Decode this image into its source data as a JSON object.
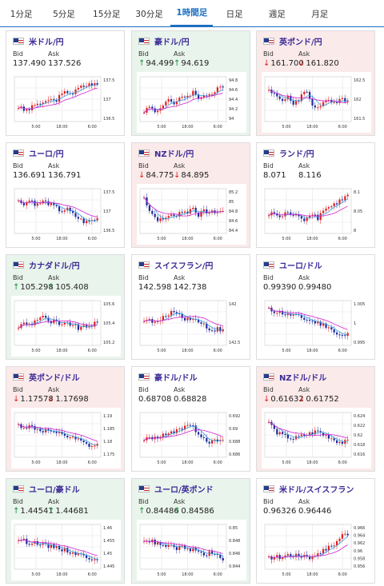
{
  "tabs": [
    {
      "label": "1分足",
      "active": false
    },
    {
      "label": "5分足",
      "active": false
    },
    {
      "label": "15分足",
      "active": false
    },
    {
      "label": "30分足",
      "active": false
    },
    {
      "label": "1時間足",
      "active": true
    },
    {
      "label": "日足",
      "active": false
    },
    {
      "label": "週足",
      "active": false
    },
    {
      "label": "月足",
      "active": false
    }
  ],
  "labels": {
    "bid": "Bid",
    "ask": "Ask"
  },
  "colors": {
    "up": "#1a8a3a",
    "down": "#d22222",
    "pair": "#3b2b96",
    "tab_active": "#1b6fc0",
    "candle_up": "#e02020",
    "candle_down": "#1e2a9a",
    "ma_short": "#3aa0e0",
    "ma_long": "#d020d0"
  },
  "x_ticks": [
    "5:00",
    "18:00",
    "6:00"
  ],
  "cards": [
    {
      "pair": "米ドル/円",
      "trend": "neutral",
      "bid": "137.490",
      "ask": "137.526",
      "y_ticks": [
        "137.5",
        "137",
        "136.5"
      ],
      "shape": [
        0.3,
        0.2,
        0.25,
        0.4,
        0.35,
        0.5,
        0.45,
        0.6,
        0.7,
        0.65,
        0.8,
        0.85,
        0.9,
        0.88
      ]
    },
    {
      "pair": "豪ドル/円",
      "trend": "up",
      "bid": "94.499",
      "ask": "94.619",
      "y_ticks": [
        "94.8",
        "94.6",
        "94.4",
        "94.2",
        "94"
      ],
      "shape": [
        0.2,
        0.3,
        0.15,
        0.35,
        0.5,
        0.3,
        0.6,
        0.55,
        0.7,
        0.5,
        0.65,
        0.6,
        0.75,
        0.8
      ]
    },
    {
      "pair": "英ポンド/円",
      "trend": "down",
      "bid": "161.700",
      "ask": "161.820",
      "y_ticks": [
        "162.5",
        "162",
        "161.5"
      ],
      "shape": [
        0.7,
        0.6,
        0.5,
        0.55,
        0.4,
        0.45,
        0.8,
        0.35,
        0.3,
        0.4,
        0.45,
        0.35,
        0.5,
        0.45
      ]
    },
    {
      "pair": "ユーロ/円",
      "trend": "neutral",
      "bid": "136.691",
      "ask": "136.791",
      "y_ticks": [
        "137.5",
        "137",
        "136.5"
      ],
      "shape": [
        0.75,
        0.7,
        0.8,
        0.65,
        0.75,
        0.7,
        0.6,
        0.5,
        0.55,
        0.4,
        0.3,
        0.2,
        0.25,
        0.3
      ]
    },
    {
      "pair": "NZドル/円",
      "trend": "down",
      "bid": "84.775",
      "ask": "84.895",
      "y_ticks": [
        "85.2",
        "85",
        "84.8",
        "84.6",
        "84.4"
      ],
      "shape": [
        0.85,
        0.5,
        0.3,
        0.25,
        0.4,
        0.35,
        0.5,
        0.45,
        0.6,
        0.4,
        0.5,
        0.45,
        0.5,
        0.48
      ]
    },
    {
      "pair": "ランド/円",
      "trend": "neutral",
      "bid": "8.071",
      "ask": "8.116",
      "y_ticks": [
        "8.1",
        "8.05",
        "8"
      ],
      "shape": [
        0.4,
        0.45,
        0.3,
        0.5,
        0.35,
        0.4,
        0.25,
        0.5,
        0.3,
        0.55,
        0.6,
        0.7,
        0.8,
        0.9
      ]
    },
    {
      "pair": "カナダドル/円",
      "trend": "up",
      "bid": "105.298",
      "ask": "105.408",
      "y_ticks": [
        "105.6",
        "105.4",
        "105.2"
      ],
      "shape": [
        0.4,
        0.5,
        0.45,
        0.6,
        0.7,
        0.5,
        0.55,
        0.4,
        0.5,
        0.45,
        0.35,
        0.4,
        0.45,
        0.5
      ]
    },
    {
      "pair": "スイスフラン/円",
      "trend": "neutral",
      "bid": "142.598",
      "ask": "142.738",
      "y_ticks": [
        "142",
        "142.5"
      ],
      "shape": [
        0.6,
        0.55,
        0.5,
        0.6,
        0.75,
        0.8,
        0.7,
        0.6,
        0.65,
        0.5,
        0.45,
        0.3,
        0.35,
        0.3
      ]
    },
    {
      "pair": "ユーロ/ドル",
      "trend": "neutral",
      "bid": "0.99390",
      "ask": "0.99480",
      "y_ticks": [
        "1.005",
        "1",
        "0.995"
      ],
      "shape": [
        0.85,
        0.8,
        0.78,
        0.7,
        0.72,
        0.65,
        0.6,
        0.55,
        0.5,
        0.45,
        0.4,
        0.2,
        0.15,
        0.2
      ]
    },
    {
      "pair": "英ポンド/ドル",
      "trend": "down",
      "bid": "1.17578",
      "ask": "1.17698",
      "y_ticks": [
        "1.19",
        "1.185",
        "1.18",
        "1.175"
      ],
      "shape": [
        0.75,
        0.7,
        0.72,
        0.65,
        0.6,
        0.62,
        0.5,
        0.55,
        0.45,
        0.4,
        0.35,
        0.25,
        0.2,
        0.22
      ]
    },
    {
      "pair": "豪ドル/ドル",
      "trend": "neutral",
      "bid": "0.68708",
      "ask": "0.68828",
      "y_ticks": [
        "0.692",
        "0.69",
        "0.688",
        "0.686"
      ],
      "shape": [
        0.35,
        0.45,
        0.4,
        0.55,
        0.5,
        0.6,
        0.65,
        0.8,
        0.7,
        0.55,
        0.4,
        0.3,
        0.35,
        0.32
      ]
    },
    {
      "pair": "NZドル/ドル",
      "trend": "down",
      "bid": "0.61632",
      "ask": "0.61752",
      "y_ticks": [
        "0.624",
        "0.622",
        "0.62",
        "0.618",
        "0.616"
      ],
      "shape": [
        0.85,
        0.6,
        0.5,
        0.45,
        0.4,
        0.45,
        0.5,
        0.55,
        0.6,
        0.5,
        0.45,
        0.35,
        0.3,
        0.32
      ]
    },
    {
      "pair": "ユーロ/豪ドル",
      "trend": "up",
      "bid": "1.44541",
      "ask": "1.44681",
      "y_ticks": [
        "1.46",
        "1.455",
        "1.45",
        "1.445"
      ],
      "shape": [
        0.7,
        0.65,
        0.6,
        0.62,
        0.55,
        0.5,
        0.52,
        0.45,
        0.4,
        0.35,
        0.3,
        0.25,
        0.2,
        0.22
      ]
    },
    {
      "pair": "ユーロ/英ポンド",
      "trend": "up",
      "bid": "0.84486",
      "ask": "0.84586",
      "y_ticks": [
        "0.85",
        "0.848",
        "0.846",
        "0.844"
      ],
      "shape": [
        0.7,
        0.65,
        0.6,
        0.5,
        0.55,
        0.45,
        0.5,
        0.4,
        0.45,
        0.35,
        0.3,
        0.35,
        0.25,
        0.2
      ]
    },
    {
      "pair": "米ドル/スイスフラン",
      "trend": "neutral",
      "bid": "0.96326",
      "ask": "0.96446",
      "y_ticks": [
        "0.966",
        "0.964",
        "0.962",
        "0.96",
        "0.958",
        "0.956"
      ],
      "shape": [
        0.2,
        0.25,
        0.22,
        0.3,
        0.28,
        0.25,
        0.3,
        0.2,
        0.35,
        0.4,
        0.5,
        0.6,
        0.8,
        0.85
      ]
    }
  ]
}
